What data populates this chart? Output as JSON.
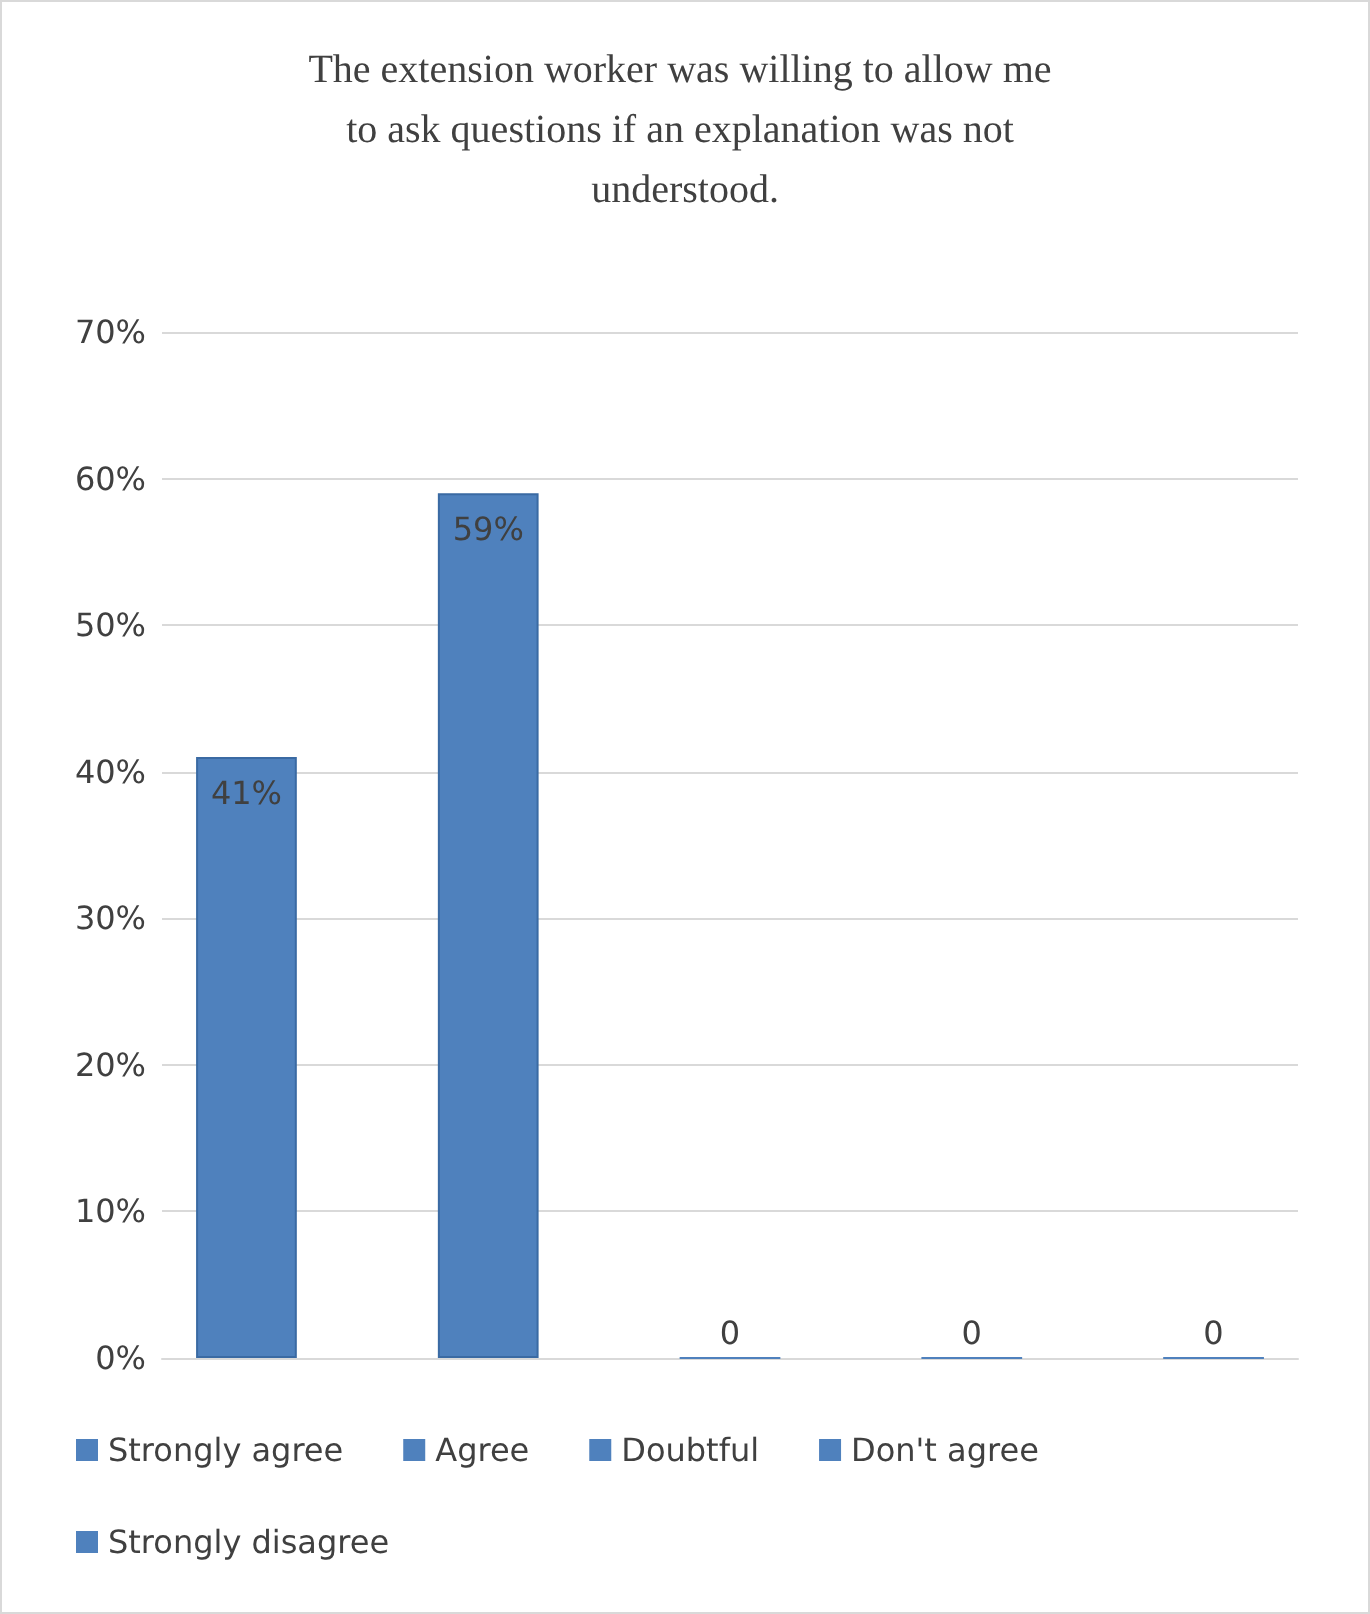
{
  "chart_data": {
    "type": "bar",
    "title": "The extension worker was willing to allow me to ask questions if an explanation was not understood.",
    "categories": [
      null
    ],
    "series": [
      {
        "name": "Strongly agree",
        "color": "#4f81bd",
        "values": [
          41
        ],
        "value_labels": [
          "41%"
        ]
      },
      {
        "name": "Agree",
        "color": "#4f81bd",
        "values": [
          59
        ],
        "value_labels": [
          "59%"
        ]
      },
      {
        "name": "Doubtful",
        "color": "#4f81bd",
        "values": [
          0
        ],
        "value_labels": [
          "0"
        ]
      },
      {
        "name": "Don't agree",
        "color": "#4f81bd",
        "values": [
          0
        ],
        "value_labels": [
          "0"
        ]
      },
      {
        "name": "Strongly disagree",
        "color": "#4f81bd",
        "values": [
          0
        ],
        "value_labels": [
          "0"
        ]
      }
    ],
    "ylim": [
      0,
      70
    ],
    "yticks": [
      {
        "value": 0,
        "label": "0%"
      },
      {
        "value": 10,
        "label": "10%"
      },
      {
        "value": 20,
        "label": "20%"
      },
      {
        "value": 30,
        "label": "30%"
      },
      {
        "value": 40,
        "label": "40%"
      },
      {
        "value": 50,
        "label": "50%"
      },
      {
        "value": 60,
        "label": "60%"
      },
      {
        "value": 70,
        "label": "70%"
      }
    ],
    "grid": "y",
    "legend": "bottom"
  }
}
